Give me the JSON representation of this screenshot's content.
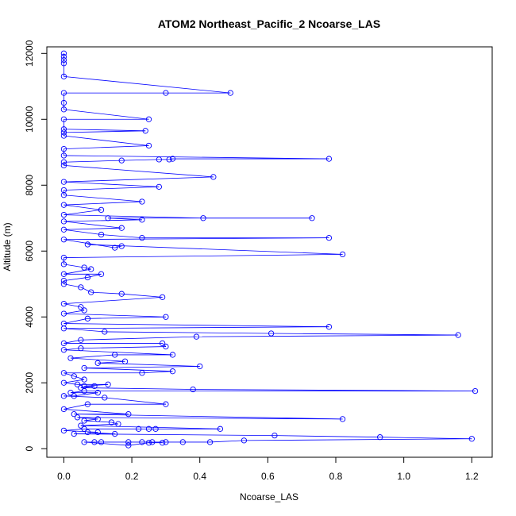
{
  "chart_data": {
    "type": "line",
    "title": "ATOM2 Northeast_Pacific_2 Ncoarse_LAS",
    "xlabel": "Ncoarse_LAS",
    "ylabel": "Altitude (m)",
    "xlim": [
      -0.05,
      1.26
    ],
    "ylim": [
      -260,
      12200
    ],
    "x_ticks": [
      0,
      0.2,
      0.4,
      0.6,
      0.8,
      1.0,
      1.2
    ],
    "x_tick_labels": [
      "0.0",
      "0.2",
      "0.4",
      "0.6",
      "0.8",
      "1.0",
      "1.2"
    ],
    "y_ticks": [
      0,
      2000,
      4000,
      6000,
      8000,
      10000,
      12000
    ],
    "y_tick_labels": [
      "0",
      "2000",
      "4000",
      "6000",
      "8000",
      "10000",
      "12000"
    ],
    "grid": false,
    "legend": "none",
    "series_color": "#0000ff",
    "series": [
      {
        "marker": "open-circle",
        "points": [
          [
            0.0,
            12000
          ],
          [
            0.0,
            11900
          ],
          [
            0.0,
            11800
          ],
          [
            0.0,
            11700
          ],
          [
            0.0,
            11300
          ],
          [
            0.49,
            10800
          ],
          [
            0.3,
            10800
          ],
          [
            0.0,
            10800
          ],
          [
            0.0,
            10500
          ],
          [
            0.0,
            10300
          ],
          [
            0.25,
            10000
          ],
          [
            0.0,
            10000
          ],
          [
            0.0,
            9700
          ],
          [
            0.24,
            9650
          ],
          [
            0.0,
            9600
          ],
          [
            0.0,
            9500
          ],
          [
            0.25,
            9200
          ],
          [
            0.0,
            9100
          ],
          [
            0.0,
            8900
          ],
          [
            0.78,
            8800
          ],
          [
            0.32,
            8800
          ],
          [
            0.31,
            8780
          ],
          [
            0.28,
            8780
          ],
          [
            0.17,
            8750
          ],
          [
            0.0,
            8700
          ],
          [
            0.0,
            8600
          ],
          [
            0.44,
            8250
          ],
          [
            0.0,
            8100
          ],
          [
            0.28,
            7950
          ],
          [
            0.0,
            7850
          ],
          [
            0.0,
            7700
          ],
          [
            0.23,
            7500
          ],
          [
            0.0,
            7400
          ],
          [
            0.11,
            7250
          ],
          [
            0.0,
            7100
          ],
          [
            0.41,
            7000
          ],
          [
            0.73,
            7000
          ],
          [
            0.13,
            7000
          ],
          [
            0.23,
            6950
          ],
          [
            0.0,
            6900
          ],
          [
            0.17,
            6700
          ],
          [
            0.0,
            6650
          ],
          [
            0.11,
            6500
          ],
          [
            0.23,
            6400
          ],
          [
            0.78,
            6400
          ],
          [
            0.0,
            6350
          ],
          [
            0.15,
            6100
          ],
          [
            0.17,
            6150
          ],
          [
            0.07,
            6200
          ],
          [
            0.82,
            5900
          ],
          [
            0.0,
            5800
          ],
          [
            0.0,
            5600
          ],
          [
            0.06,
            5500
          ],
          [
            0.08,
            5450
          ],
          [
            0.0,
            5300
          ],
          [
            0.11,
            5300
          ],
          [
            0.07,
            5200
          ],
          [
            0.0,
            5100
          ],
          [
            0.0,
            5000
          ],
          [
            0.05,
            4900
          ],
          [
            0.08,
            4750
          ],
          [
            0.17,
            4700
          ],
          [
            0.29,
            4600
          ],
          [
            0.0,
            4400
          ],
          [
            0.05,
            4300
          ],
          [
            0.06,
            4200
          ],
          [
            0.0,
            4100
          ],
          [
            0.3,
            4000
          ],
          [
            0.07,
            3950
          ],
          [
            0.0,
            3800
          ],
          [
            0.78,
            3700
          ],
          [
            0.0,
            3650
          ],
          [
            0.12,
            3550
          ],
          [
            0.61,
            3500
          ],
          [
            1.16,
            3450
          ],
          [
            0.39,
            3400
          ],
          [
            0.05,
            3300
          ],
          [
            0.0,
            3200
          ],
          [
            0.29,
            3200
          ],
          [
            0.3,
            3100
          ],
          [
            0.05,
            3050
          ],
          [
            0.0,
            3000
          ],
          [
            0.32,
            2850
          ],
          [
            0.15,
            2850
          ],
          [
            0.02,
            2750
          ],
          [
            0.18,
            2650
          ],
          [
            0.1,
            2600
          ],
          [
            0.4,
            2500
          ],
          [
            0.06,
            2450
          ],
          [
            0.32,
            2350
          ],
          [
            0.23,
            2300
          ],
          [
            0.0,
            2300
          ],
          [
            0.03,
            2200
          ],
          [
            0.06,
            2100
          ],
          [
            0.0,
            2000
          ],
          [
            0.04,
            1950
          ],
          [
            0.13,
            1950
          ],
          [
            0.06,
            1900
          ],
          [
            0.09,
            1900
          ],
          [
            0.05,
            1850
          ],
          [
            0.38,
            1800
          ],
          [
            1.21,
            1750
          ],
          [
            0.06,
            1750
          ],
          [
            0.02,
            1700
          ],
          [
            0.1,
            1700
          ],
          [
            0.03,
            1600
          ],
          [
            0.0,
            1600
          ],
          [
            0.12,
            1550
          ],
          [
            0.3,
            1350
          ],
          [
            0.07,
            1350
          ],
          [
            0.0,
            1200
          ],
          [
            0.19,
            1050
          ],
          [
            0.03,
            1050
          ],
          [
            0.82,
            900
          ],
          [
            0.04,
            950
          ],
          [
            0.1,
            900
          ],
          [
            0.06,
            850
          ],
          [
            0.14,
            800
          ],
          [
            0.16,
            750
          ],
          [
            0.05,
            700
          ],
          [
            0.46,
            600
          ],
          [
            0.27,
            600
          ],
          [
            0.25,
            600
          ],
          [
            0.22,
            600
          ],
          [
            0.06,
            600
          ],
          [
            0.0,
            550
          ],
          [
            0.1,
            500
          ],
          [
            0.07,
            500
          ],
          [
            0.15,
            450
          ],
          [
            0.03,
            450
          ],
          [
            0.62,
            400
          ],
          [
            0.93,
            350
          ],
          [
            1.2,
            300
          ],
          [
            0.53,
            250
          ],
          [
            0.43,
            200
          ],
          [
            0.35,
            200
          ],
          [
            0.3,
            200
          ],
          [
            0.26,
            200
          ],
          [
            0.23,
            200
          ],
          [
            0.19,
            200
          ],
          [
            0.11,
            200
          ],
          [
            0.09,
            200
          ],
          [
            0.06,
            200
          ],
          [
            0.19,
            100
          ],
          [
            0.25,
            180
          ],
          [
            0.29,
            180
          ]
        ]
      }
    ]
  }
}
